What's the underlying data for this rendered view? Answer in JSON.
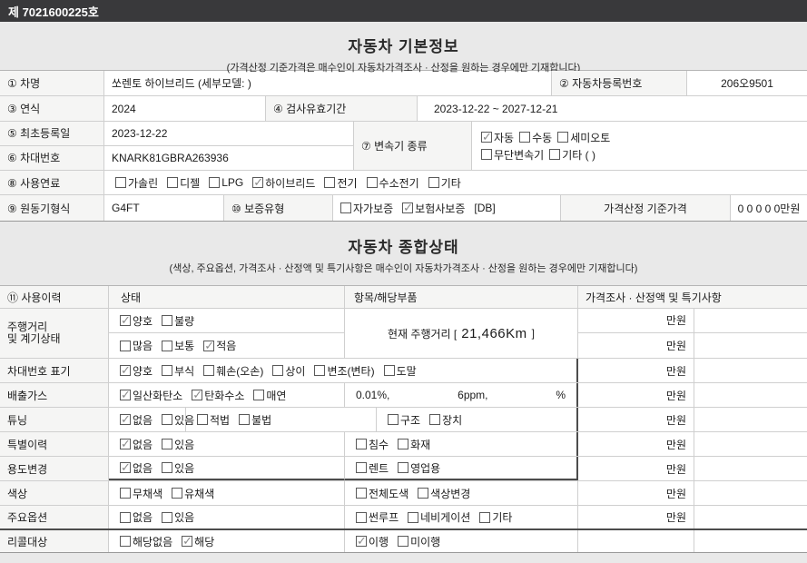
{
  "doc_no": "제 7021600225호",
  "section1": {
    "title": "자동차 기본정보",
    "subtitle": "(가격산정 기준가격은 매수인이 자동차가격조사 · 산정을 원하는 경우에만 기재합니다)",
    "car_name_label": "① 차명",
    "car_name_value": "쏘렌토 하이브리드 (세부모델: )",
    "reg_no_label": "② 자동차등록번호",
    "reg_no_value": "206오9501",
    "year_label": "③ 연식",
    "year_value": "2024",
    "inspect_label": "④ 검사유효기간",
    "inspect_value": "2023-12-22 ~ 2027-12-21",
    "first_reg_label": "⑤ 최초등록일",
    "first_reg_value": "2023-12-22",
    "vin_label": "⑥ 차대번호",
    "vin_value": "KNARK81GBRA263936",
    "trans_label": "⑦ 변속기 종류",
    "fuel_label": "⑧ 사용연료",
    "engine_label": "⑨ 원동기형식",
    "engine_value": "G4FT",
    "warranty_label": "⑩ 보증유형",
    "warranty_db": "[DB]",
    "base_price_label": "가격산정 기준가격",
    "base_price_value": "0 0 0 0 0만원"
  },
  "section2": {
    "title": "자동차 종합상태",
    "subtitle": "(색상, 주요옵션, 가격조사 · 산정액 및 특기사항은 매수인이 자동차가격조사 · 산정을 원하는 경우에만 기재합니다)",
    "col_usage": "⑪ 사용이력",
    "col_state": "상태",
    "col_parts": "항목/해당부품",
    "col_price": "가격조사 · 산정액 및 특기사항",
    "unit": "만원",
    "row_mileage_label_1": "주행거리",
    "row_mileage_label_2": "및 계기상태",
    "mileage_prefix": "현재 주행거리 [",
    "mileage_value": "21,466Km",
    "mileage_suffix": "]",
    "row_vin_label": "차대번호 표기",
    "row_emission_label": "배출가스",
    "emission_values": [
      "0.01%,",
      "6ppm,",
      "%"
    ],
    "row_tuning_label": "튜닝",
    "row_special_label": "특별이력",
    "row_usage_label": "용도변경",
    "row_color_label": "색상",
    "row_options_label": "주요옵션",
    "row_recall_label": "리콜대상"
  },
  "checks": {
    "transmission_1": [
      {
        "label": "자동",
        "checked": true
      },
      {
        "label": "수동",
        "checked": false
      },
      {
        "label": "세미오토",
        "checked": false
      }
    ],
    "transmission_2": [
      {
        "label": "무단변속기",
        "checked": false
      },
      {
        "label": "기타 (          )",
        "checked": false
      }
    ],
    "fuel": [
      {
        "label": "가솔린",
        "checked": false
      },
      {
        "label": "디젤",
        "checked": false
      },
      {
        "label": "LPG",
        "checked": false
      },
      {
        "label": "하이브리드",
        "checked": true
      },
      {
        "label": "전기",
        "checked": false
      },
      {
        "label": "수소전기",
        "checked": false
      },
      {
        "label": "기타",
        "checked": false
      }
    ],
    "warranty": [
      {
        "label": "자가보증",
        "checked": false
      },
      {
        "label": "보험사보증",
        "checked": true
      }
    ],
    "mileage_status": [
      {
        "label": "양호",
        "checked": true
      },
      {
        "label": "불량",
        "checked": false
      }
    ],
    "mileage_amount": [
      {
        "label": "많음",
        "checked": false
      },
      {
        "label": "보통",
        "checked": false
      },
      {
        "label": "적음",
        "checked": true
      }
    ],
    "vin_mark": [
      {
        "label": "양호",
        "checked": true
      },
      {
        "label": "부식",
        "checked": false
      },
      {
        "label": "훼손(오손)",
        "checked": false
      },
      {
        "label": "상이",
        "checked": false
      },
      {
        "label": "변조(변타)",
        "checked": false
      },
      {
        "label": "도말",
        "checked": false
      }
    ],
    "emission": [
      {
        "label": "일산화탄소",
        "checked": true
      },
      {
        "label": "탄화수소",
        "checked": true
      },
      {
        "label": "매연",
        "checked": false
      }
    ],
    "tuning_state": [
      {
        "label": "없음",
        "checked": true
      },
      {
        "label": "있음",
        "checked": false
      }
    ],
    "tuning_legal": [
      {
        "label": "적법",
        "checked": false
      },
      {
        "label": "불법",
        "checked": false
      }
    ],
    "tuning_kind": [
      {
        "label": "구조",
        "checked": false
      },
      {
        "label": "장치",
        "checked": false
      }
    ],
    "special_state": [
      {
        "label": "없음",
        "checked": true
      },
      {
        "label": "있음",
        "checked": false
      }
    ],
    "special_kind": [
      {
        "label": "침수",
        "checked": false
      },
      {
        "label": "화재",
        "checked": false
      }
    ],
    "usage_state": [
      {
        "label": "없음",
        "checked": true
      },
      {
        "label": "있음",
        "checked": false
      }
    ],
    "usage_kind": [
      {
        "label": "렌트",
        "checked": false
      },
      {
        "label": "영업용",
        "checked": false
      }
    ],
    "color_state": [
      {
        "label": "무채색",
        "checked": false
      },
      {
        "label": "유채색",
        "checked": false
      }
    ],
    "color_kind": [
      {
        "label": "전체도색",
        "checked": false
      },
      {
        "label": "색상변경",
        "checked": false
      }
    ],
    "options_state": [
      {
        "label": "없음",
        "checked": false
      },
      {
        "label": "있음",
        "checked": false
      }
    ],
    "options_kind": [
      {
        "label": "썬루프",
        "checked": false
      },
      {
        "label": "네비게이션",
        "checked": false
      },
      {
        "label": "기타",
        "checked": false
      }
    ],
    "recall_state": [
      {
        "label": "해당없음",
        "checked": false
      },
      {
        "label": "해당",
        "checked": true
      }
    ],
    "recall_action": [
      {
        "label": "이행",
        "checked": true
      },
      {
        "label": "미이행",
        "checked": false
      }
    ]
  }
}
